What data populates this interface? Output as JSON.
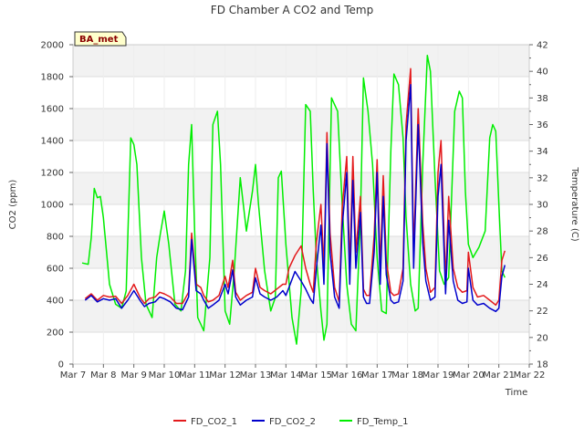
{
  "chart_data": {
    "type": "line",
    "title": "FD Chamber A CO2 and Temp",
    "xlabel": "Time",
    "ylabel_left": "CO2 (ppm)",
    "ylabel_right": "Temperature (C)",
    "badge": "BA_met",
    "legend_position": "bottom-center",
    "grid": true,
    "background_bands": true,
    "x_domain": [
      7,
      22
    ],
    "x_ticks": [
      {
        "v": 7,
        "label": "Mar 7"
      },
      {
        "v": 8,
        "label": "Mar 8"
      },
      {
        "v": 9,
        "label": "Mar 9"
      },
      {
        "v": 10,
        "label": "Mar 10"
      },
      {
        "v": 11,
        "label": "Mar 11"
      },
      {
        "v": 12,
        "label": "Mar 12"
      },
      {
        "v": 13,
        "label": "Mar 13"
      },
      {
        "v": 14,
        "label": "Mar 14"
      },
      {
        "v": 15,
        "label": "Mar 15"
      },
      {
        "v": 16,
        "label": "Mar 16"
      },
      {
        "v": 17,
        "label": "Mar 17"
      },
      {
        "v": 18,
        "label": "Mar 18"
      },
      {
        "v": 19,
        "label": "Mar 19"
      },
      {
        "v": 20,
        "label": "Mar 20"
      },
      {
        "v": 21,
        "label": "Mar 21"
      },
      {
        "v": 22,
        "label": "Mar 22"
      }
    ],
    "ylim_left": [
      0,
      2000
    ],
    "y_ticks_left": [
      0,
      200,
      400,
      600,
      800,
      1000,
      1200,
      1400,
      1600,
      1800,
      2000
    ],
    "ylim_right": [
      18,
      42
    ],
    "y_ticks_right": [
      18,
      20,
      22,
      24,
      26,
      28,
      30,
      32,
      34,
      36,
      38,
      40,
      42
    ],
    "series": [
      {
        "name": "FD_CO2_1",
        "axis": "left",
        "color": "#e31a1c",
        "x": [
          7.4,
          7.6,
          7.8,
          8.0,
          8.2,
          8.4,
          8.6,
          8.8,
          9.0,
          9.2,
          9.35,
          9.5,
          9.7,
          9.85,
          10.0,
          10.2,
          10.4,
          10.6,
          10.8,
          10.9,
          11.05,
          11.2,
          11.3,
          11.45,
          11.6,
          11.8,
          12.0,
          12.1,
          12.25,
          12.35,
          12.5,
          12.7,
          12.9,
          13.0,
          13.15,
          13.3,
          13.5,
          13.7,
          13.9,
          14.0,
          14.1,
          14.3,
          14.5,
          14.65,
          14.8,
          14.9,
          15.0,
          15.15,
          15.25,
          15.35,
          15.45,
          15.6,
          15.75,
          15.85,
          16.0,
          16.1,
          16.2,
          16.3,
          16.45,
          16.55,
          16.65,
          16.75,
          16.9,
          17.0,
          17.1,
          17.2,
          17.3,
          17.45,
          17.55,
          17.7,
          17.85,
          17.95,
          18.1,
          18.2,
          18.35,
          18.5,
          18.6,
          18.75,
          18.9,
          19.0,
          19.1,
          19.25,
          19.35,
          19.5,
          19.65,
          19.8,
          19.95,
          20.0,
          20.15,
          20.3,
          20.5,
          20.7,
          20.9,
          21.0,
          21.1,
          21.2
        ],
        "values": [
          410,
          440,
          400,
          430,
          420,
          425,
          380,
          430,
          500,
          420,
          380,
          410,
          420,
          450,
          440,
          420,
          380,
          380,
          450,
          820,
          500,
          480,
          430,
          390,
          400,
          430,
          550,
          480,
          650,
          450,
          400,
          430,
          450,
          600,
          480,
          460,
          440,
          470,
          500,
          500,
          600,
          680,
          740,
          600,
          500,
          450,
          760,
          1000,
          600,
          1450,
          820,
          480,
          390,
          980,
          1300,
          600,
          1300,
          700,
          1050,
          470,
          430,
          430,
          800,
          1280,
          600,
          1180,
          650,
          450,
          430,
          440,
          600,
          1500,
          1850,
          700,
          1600,
          880,
          600,
          450,
          480,
          1200,
          1400,
          520,
          1050,
          600,
          480,
          450,
          460,
          700,
          480,
          420,
          430,
          400,
          370,
          400,
          650,
          710
        ]
      },
      {
        "name": "FD_CO2_2",
        "axis": "left",
        "color": "#0000cc",
        "x": [
          7.4,
          7.6,
          7.8,
          8.0,
          8.2,
          8.4,
          8.6,
          8.8,
          9.0,
          9.2,
          9.35,
          9.5,
          9.7,
          9.85,
          10.0,
          10.2,
          10.4,
          10.6,
          10.8,
          10.9,
          11.05,
          11.2,
          11.3,
          11.45,
          11.6,
          11.8,
          12.0,
          12.1,
          12.25,
          12.35,
          12.5,
          12.7,
          12.9,
          13.0,
          13.15,
          13.3,
          13.5,
          13.7,
          13.9,
          14.0,
          14.1,
          14.3,
          14.5,
          14.65,
          14.8,
          14.9,
          15.0,
          15.15,
          15.25,
          15.35,
          15.45,
          15.6,
          15.75,
          15.85,
          16.0,
          16.1,
          16.2,
          16.3,
          16.45,
          16.55,
          16.65,
          16.75,
          16.9,
          17.0,
          17.1,
          17.2,
          17.3,
          17.45,
          17.55,
          17.7,
          17.85,
          17.95,
          18.1,
          18.2,
          18.35,
          18.5,
          18.6,
          18.75,
          18.9,
          19.0,
          19.1,
          19.25,
          19.35,
          19.5,
          19.65,
          19.8,
          19.95,
          20.0,
          20.15,
          20.3,
          20.5,
          20.7,
          20.9,
          21.0,
          21.1,
          21.2
        ],
        "values": [
          400,
          430,
          390,
          410,
          400,
          410,
          350,
          400,
          460,
          400,
          360,
          380,
          390,
          420,
          410,
          390,
          350,
          340,
          420,
          780,
          460,
          440,
          400,
          350,
          370,
          400,
          500,
          440,
          590,
          420,
          370,
          400,
          420,
          540,
          440,
          420,
          400,
          420,
          460,
          430,
          480,
          580,
          520,
          470,
          410,
          380,
          600,
          870,
          500,
          1380,
          700,
          420,
          350,
          860,
          1200,
          500,
          1150,
          600,
          950,
          420,
          380,
          380,
          700,
          1200,
          500,
          1050,
          560,
          400,
          380,
          390,
          520,
          1400,
          1750,
          600,
          1500,
          760,
          520,
          400,
          420,
          1050,
          1250,
          440,
          900,
          520,
          400,
          380,
          390,
          600,
          400,
          370,
          380,
          350,
          330,
          350,
          550,
          620
        ]
      },
      {
        "name": "FD_Temp_1",
        "axis": "right",
        "color": "#00ee00",
        "x": [
          7.3,
          7.5,
          7.6,
          7.7,
          7.8,
          7.9,
          8.0,
          8.2,
          8.4,
          8.6,
          8.75,
          8.9,
          9.0,
          9.1,
          9.25,
          9.4,
          9.6,
          9.75,
          9.85,
          10.0,
          10.15,
          10.35,
          10.55,
          10.7,
          10.8,
          10.9,
          11.0,
          11.1,
          11.3,
          11.5,
          11.6,
          11.75,
          11.85,
          12.0,
          12.15,
          12.3,
          12.5,
          12.7,
          12.9,
          13.0,
          13.1,
          13.3,
          13.5,
          13.65,
          13.75,
          13.85,
          14.0,
          14.2,
          14.35,
          14.5,
          14.65,
          14.8,
          14.9,
          15.0,
          15.15,
          15.25,
          15.35,
          15.5,
          15.7,
          15.85,
          16.0,
          16.15,
          16.3,
          16.45,
          16.55,
          16.7,
          16.85,
          17.0,
          17.15,
          17.3,
          17.45,
          17.55,
          17.7,
          17.85,
          17.95,
          18.1,
          18.25,
          18.35,
          18.5,
          18.65,
          18.75,
          18.9,
          19.05,
          19.2,
          19.35,
          19.55,
          19.7,
          19.8,
          19.9,
          20.0,
          20.15,
          20.35,
          20.55,
          20.7,
          20.8,
          20.9,
          21.0,
          21.1,
          21.2
        ],
        "values": [
          25.6,
          25.5,
          27.5,
          31.2,
          30.5,
          30.6,
          29.0,
          24.0,
          22.5,
          22.2,
          23.5,
          35.0,
          34.5,
          33.0,
          26.0,
          22.5,
          21.5,
          26.0,
          27.5,
          29.5,
          27.0,
          22.5,
          22.0,
          25.0,
          33.0,
          36.0,
          28.0,
          21.5,
          20.5,
          26.0,
          36.0,
          37.0,
          33.0,
          22.0,
          21.0,
          25.0,
          32.0,
          28.0,
          31.0,
          33.0,
          30.0,
          25.0,
          22.0,
          23.0,
          32.0,
          32.5,
          27.0,
          21.5,
          19.5,
          23.5,
          37.5,
          37.0,
          31.0,
          26.0,
          22.0,
          19.8,
          21.0,
          38.0,
          37.0,
          30.0,
          24.0,
          21.0,
          20.5,
          29.0,
          39.5,
          37.0,
          33.0,
          26.0,
          22.0,
          21.8,
          34.0,
          39.8,
          39.0,
          35.0,
          29.0,
          24.0,
          22.0,
          22.2,
          33.0,
          41.2,
          40.0,
          32.0,
          25.0,
          24.0,
          24.5,
          37.0,
          38.5,
          38.0,
          31.0,
          27.0,
          26.0,
          26.8,
          28.0,
          35.0,
          36.0,
          35.5,
          30.0,
          25.0,
          24.5
        ]
      }
    ]
  }
}
